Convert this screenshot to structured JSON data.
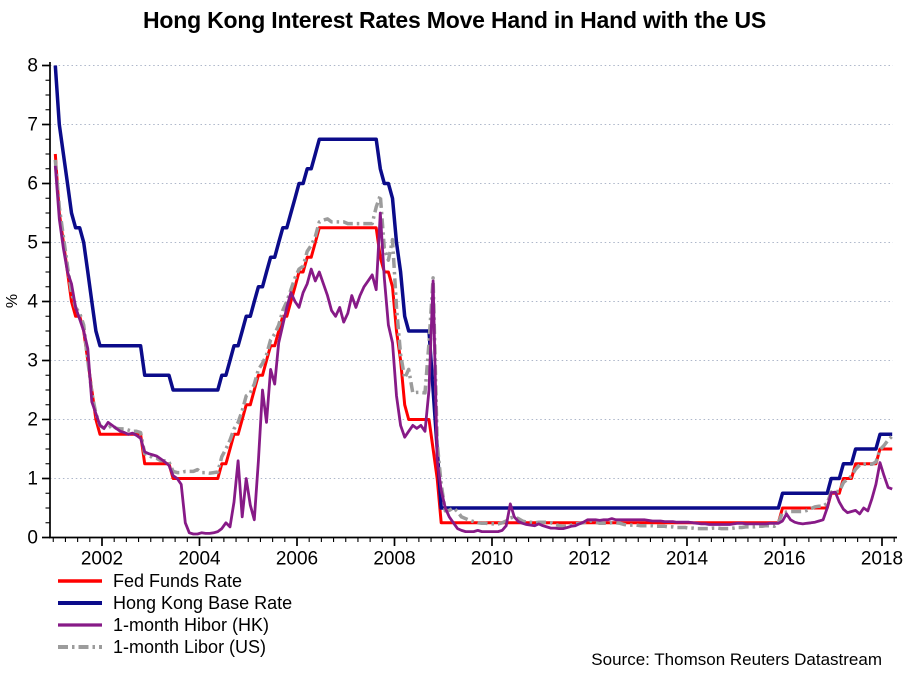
{
  "title": "Hong Kong Interest Rates Move Hand in Hand with the US",
  "source": "Source: Thomson Reuters Datastream",
  "chart_data": {
    "type": "line",
    "title": "Hong Kong Interest Rates Move Hand in Hand with the US",
    "xlabel": "",
    "ylabel": "%",
    "x_start_year": 2001.0,
    "x_end_year": 2018.25,
    "x_step_months": 1,
    "ylim": [
      0,
      8
    ],
    "x_ticks": [
      2002,
      2004,
      2006,
      2008,
      2010,
      2012,
      2014,
      2016,
      2018
    ],
    "y_ticks": [
      0,
      1,
      2,
      3,
      4,
      5,
      6,
      7,
      8
    ],
    "x_minor_step_years": 0.25,
    "y_minor_step": 0.25,
    "grid": "dotted horizontal at integer values",
    "grid_color": "#aeb7ca",
    "axis_color": "#000000",
    "legend_position": "bottom-left below plot",
    "series": [
      {
        "name": "Fed Funds Rate",
        "color": "#ff0000",
        "width": 3,
        "dash": null,
        "values": [
          6.5,
          5.5,
          5.0,
          4.5,
          4.0,
          3.75,
          3.75,
          3.5,
          3.0,
          2.5,
          2.0,
          1.75,
          1.75,
          1.75,
          1.75,
          1.75,
          1.75,
          1.75,
          1.75,
          1.75,
          1.75,
          1.75,
          1.25,
          1.25,
          1.25,
          1.25,
          1.25,
          1.25,
          1.25,
          1.0,
          1.0,
          1.0,
          1.0,
          1.0,
          1.0,
          1.0,
          1.0,
          1.0,
          1.0,
          1.0,
          1.0,
          1.25,
          1.25,
          1.5,
          1.75,
          1.75,
          2.0,
          2.25,
          2.25,
          2.5,
          2.75,
          2.75,
          3.0,
          3.25,
          3.25,
          3.5,
          3.75,
          3.75,
          4.0,
          4.25,
          4.5,
          4.5,
          4.75,
          4.75,
          5.0,
          5.25,
          5.25,
          5.25,
          5.25,
          5.25,
          5.25,
          5.25,
          5.25,
          5.25,
          5.25,
          5.25,
          5.25,
          5.25,
          5.25,
          5.25,
          4.75,
          4.5,
          4.5,
          4.25,
          3.5,
          3.0,
          2.25,
          2.0,
          2.0,
          2.0,
          2.0,
          2.0,
          2.0,
          1.5,
          1.0,
          0.25,
          0.25,
          0.25,
          0.25,
          0.25,
          0.25,
          0.25,
          0.25,
          0.25,
          0.25,
          0.25,
          0.25,
          0.25,
          0.25,
          0.25,
          0.25,
          0.25,
          0.25,
          0.25,
          0.25,
          0.25,
          0.25,
          0.25,
          0.25,
          0.25,
          0.25,
          0.25,
          0.25,
          0.25,
          0.25,
          0.25,
          0.25,
          0.25,
          0.25,
          0.25,
          0.25,
          0.25,
          0.25,
          0.25,
          0.25,
          0.25,
          0.25,
          0.25,
          0.25,
          0.25,
          0.25,
          0.25,
          0.25,
          0.25,
          0.25,
          0.25,
          0.25,
          0.25,
          0.25,
          0.25,
          0.25,
          0.25,
          0.25,
          0.25,
          0.25,
          0.25,
          0.25,
          0.25,
          0.25,
          0.25,
          0.25,
          0.25,
          0.25,
          0.25,
          0.25,
          0.25,
          0.25,
          0.25,
          0.25,
          0.25,
          0.25,
          0.25,
          0.25,
          0.25,
          0.25,
          0.25,
          0.25,
          0.25,
          0.25,
          0.5,
          0.5,
          0.5,
          0.5,
          0.5,
          0.5,
          0.5,
          0.5,
          0.5,
          0.5,
          0.5,
          0.5,
          0.75,
          0.75,
          0.75,
          1.0,
          1.0,
          1.0,
          1.25,
          1.25,
          1.25,
          1.25,
          1.25,
          1.25,
          1.5,
          1.5,
          1.5,
          1.5
        ]
      },
      {
        "name": "Hong Kong Base Rate",
        "color": "#0b0b8a",
        "width": 3.5,
        "dash": null,
        "values": [
          8.0,
          7.0,
          6.5,
          6.0,
          5.5,
          5.25,
          5.25,
          5.0,
          4.5,
          4.0,
          3.5,
          3.25,
          3.25,
          3.25,
          3.25,
          3.25,
          3.25,
          3.25,
          3.25,
          3.25,
          3.25,
          3.25,
          2.75,
          2.75,
          2.75,
          2.75,
          2.75,
          2.75,
          2.75,
          2.5,
          2.5,
          2.5,
          2.5,
          2.5,
          2.5,
          2.5,
          2.5,
          2.5,
          2.5,
          2.5,
          2.5,
          2.75,
          2.75,
          3.0,
          3.25,
          3.25,
          3.5,
          3.75,
          3.75,
          4.0,
          4.25,
          4.25,
          4.5,
          4.75,
          4.75,
          5.0,
          5.25,
          5.25,
          5.5,
          5.75,
          6.0,
          6.0,
          6.25,
          6.25,
          6.5,
          6.75,
          6.75,
          6.75,
          6.75,
          6.75,
          6.75,
          6.75,
          6.75,
          6.75,
          6.75,
          6.75,
          6.75,
          6.75,
          6.75,
          6.75,
          6.25,
          6.0,
          6.0,
          5.75,
          5.0,
          4.5,
          3.75,
          3.5,
          3.5,
          3.5,
          3.5,
          3.5,
          3.5,
          2.5,
          1.5,
          0.5,
          0.5,
          0.5,
          0.5,
          0.5,
          0.5,
          0.5,
          0.5,
          0.5,
          0.5,
          0.5,
          0.5,
          0.5,
          0.5,
          0.5,
          0.5,
          0.5,
          0.5,
          0.5,
          0.5,
          0.5,
          0.5,
          0.5,
          0.5,
          0.5,
          0.5,
          0.5,
          0.5,
          0.5,
          0.5,
          0.5,
          0.5,
          0.5,
          0.5,
          0.5,
          0.5,
          0.5,
          0.5,
          0.5,
          0.5,
          0.5,
          0.5,
          0.5,
          0.5,
          0.5,
          0.5,
          0.5,
          0.5,
          0.5,
          0.5,
          0.5,
          0.5,
          0.5,
          0.5,
          0.5,
          0.5,
          0.5,
          0.5,
          0.5,
          0.5,
          0.5,
          0.5,
          0.5,
          0.5,
          0.5,
          0.5,
          0.5,
          0.5,
          0.5,
          0.5,
          0.5,
          0.5,
          0.5,
          0.5,
          0.5,
          0.5,
          0.5,
          0.5,
          0.5,
          0.5,
          0.5,
          0.5,
          0.5,
          0.5,
          0.75,
          0.75,
          0.75,
          0.75,
          0.75,
          0.75,
          0.75,
          0.75,
          0.75,
          0.75,
          0.75,
          0.75,
          1.0,
          1.0,
          1.0,
          1.25,
          1.25,
          1.25,
          1.5,
          1.5,
          1.5,
          1.5,
          1.5,
          1.5,
          1.75,
          1.75,
          1.75,
          1.75
        ]
      },
      {
        "name": "1-month Hibor (HK)",
        "color": "#871a87",
        "width": 2.8,
        "dash": null,
        "values": [
          6.3,
          5.4,
          4.9,
          4.5,
          4.3,
          3.9,
          3.7,
          3.5,
          3.2,
          2.3,
          2.1,
          1.9,
          1.85,
          1.95,
          1.9,
          1.85,
          1.8,
          1.78,
          1.75,
          1.77,
          1.73,
          1.68,
          1.45,
          1.42,
          1.4,
          1.38,
          1.33,
          1.28,
          1.22,
          1.05,
          1.0,
          0.9,
          0.25,
          0.08,
          0.06,
          0.06,
          0.08,
          0.07,
          0.07,
          0.08,
          0.1,
          0.15,
          0.25,
          0.18,
          0.6,
          1.3,
          0.35,
          1.0,
          0.55,
          0.3,
          1.3,
          2.5,
          1.95,
          2.85,
          2.6,
          3.3,
          3.6,
          3.9,
          4.15,
          4.0,
          3.9,
          4.15,
          4.3,
          4.55,
          4.35,
          4.5,
          4.3,
          4.1,
          3.85,
          3.75,
          3.9,
          3.65,
          3.8,
          4.1,
          3.9,
          4.1,
          4.25,
          4.35,
          4.45,
          4.2,
          5.5,
          4.4,
          3.6,
          3.3,
          2.4,
          1.9,
          1.7,
          1.8,
          1.9,
          1.85,
          1.9,
          1.8,
          2.5,
          4.35,
          1.3,
          0.8,
          0.5,
          0.35,
          0.25,
          0.15,
          0.12,
          0.1,
          0.1,
          0.1,
          0.12,
          0.1,
          0.1,
          0.1,
          0.1,
          0.1,
          0.12,
          0.2,
          0.57,
          0.35,
          0.27,
          0.24,
          0.22,
          0.21,
          0.2,
          0.23,
          0.2,
          0.18,
          0.16,
          0.16,
          0.15,
          0.15,
          0.17,
          0.19,
          0.2,
          0.23,
          0.26,
          0.3,
          0.3,
          0.3,
          0.29,
          0.3,
          0.3,
          0.32,
          0.3,
          0.3,
          0.3,
          0.3,
          0.3,
          0.3,
          0.3,
          0.3,
          0.29,
          0.28,
          0.28,
          0.28,
          0.27,
          0.27,
          0.27,
          0.26,
          0.26,
          0.26,
          0.26,
          0.25,
          0.24,
          0.23,
          0.23,
          0.22,
          0.22,
          0.22,
          0.22,
          0.22,
          0.22,
          0.23,
          0.24,
          0.24,
          0.23,
          0.23,
          0.23,
          0.23,
          0.23,
          0.23,
          0.24,
          0.24,
          0.24,
          0.28,
          0.4,
          0.3,
          0.26,
          0.24,
          0.23,
          0.24,
          0.25,
          0.26,
          0.28,
          0.3,
          0.5,
          0.76,
          0.77,
          0.6,
          0.48,
          0.42,
          0.44,
          0.46,
          0.4,
          0.5,
          0.45,
          0.65,
          0.9,
          1.27,
          1.05,
          0.85,
          0.82
        ]
      },
      {
        "name": "1-month Libor (US)",
        "color": "#9c9c9c",
        "width": 3.5,
        "dash": "10 4 2.5 4",
        "values": [
          6.4,
          5.6,
          5.1,
          4.6,
          4.15,
          3.9,
          3.8,
          3.6,
          3.0,
          2.45,
          2.1,
          1.9,
          1.85,
          1.86,
          1.9,
          1.85,
          1.84,
          1.84,
          1.82,
          1.8,
          1.8,
          1.78,
          1.42,
          1.4,
          1.35,
          1.34,
          1.3,
          1.3,
          1.28,
          1.12,
          1.1,
          1.1,
          1.12,
          1.12,
          1.12,
          1.15,
          1.1,
          1.1,
          1.09,
          1.1,
          1.11,
          1.37,
          1.5,
          1.65,
          1.84,
          1.95,
          2.15,
          2.4,
          2.45,
          2.6,
          2.85,
          2.95,
          3.1,
          3.35,
          3.45,
          3.6,
          3.85,
          4.0,
          4.2,
          4.4,
          4.55,
          4.6,
          4.85,
          4.95,
          5.1,
          5.35,
          5.38,
          5.4,
          5.35,
          5.35,
          5.35,
          5.35,
          5.32,
          5.32,
          5.32,
          5.32,
          5.32,
          5.32,
          5.32,
          5.6,
          5.8,
          4.9,
          4.7,
          5.05,
          3.9,
          3.1,
          2.7,
          2.85,
          2.45,
          2.46,
          2.46,
          2.45,
          3.3,
          4.4,
          1.6,
          0.9,
          0.45,
          0.46,
          0.5,
          0.44,
          0.35,
          0.32,
          0.29,
          0.27,
          0.25,
          0.24,
          0.24,
          0.23,
          0.23,
          0.23,
          0.25,
          0.28,
          0.33,
          0.35,
          0.32,
          0.28,
          0.26,
          0.26,
          0.25,
          0.26,
          0.26,
          0.26,
          0.25,
          0.22,
          0.2,
          0.19,
          0.19,
          0.21,
          0.23,
          0.24,
          0.25,
          0.28,
          0.28,
          0.26,
          0.24,
          0.24,
          0.24,
          0.25,
          0.25,
          0.24,
          0.22,
          0.21,
          0.21,
          0.21,
          0.2,
          0.2,
          0.2,
          0.2,
          0.19,
          0.19,
          0.19,
          0.18,
          0.18,
          0.17,
          0.17,
          0.17,
          0.16,
          0.16,
          0.15,
          0.15,
          0.15,
          0.15,
          0.16,
          0.16,
          0.15,
          0.15,
          0.15,
          0.16,
          0.17,
          0.17,
          0.18,
          0.18,
          0.18,
          0.19,
          0.19,
          0.2,
          0.2,
          0.19,
          0.24,
          0.43,
          0.43,
          0.44,
          0.44,
          0.44,
          0.44,
          0.46,
          0.49,
          0.52,
          0.53,
          0.53,
          0.58,
          0.77,
          0.78,
          0.78,
          0.93,
          0.99,
          1.04,
          1.16,
          1.23,
          1.24,
          1.24,
          1.24,
          1.28,
          1.49,
          1.56,
          1.65,
          1.72
        ]
      }
    ]
  }
}
